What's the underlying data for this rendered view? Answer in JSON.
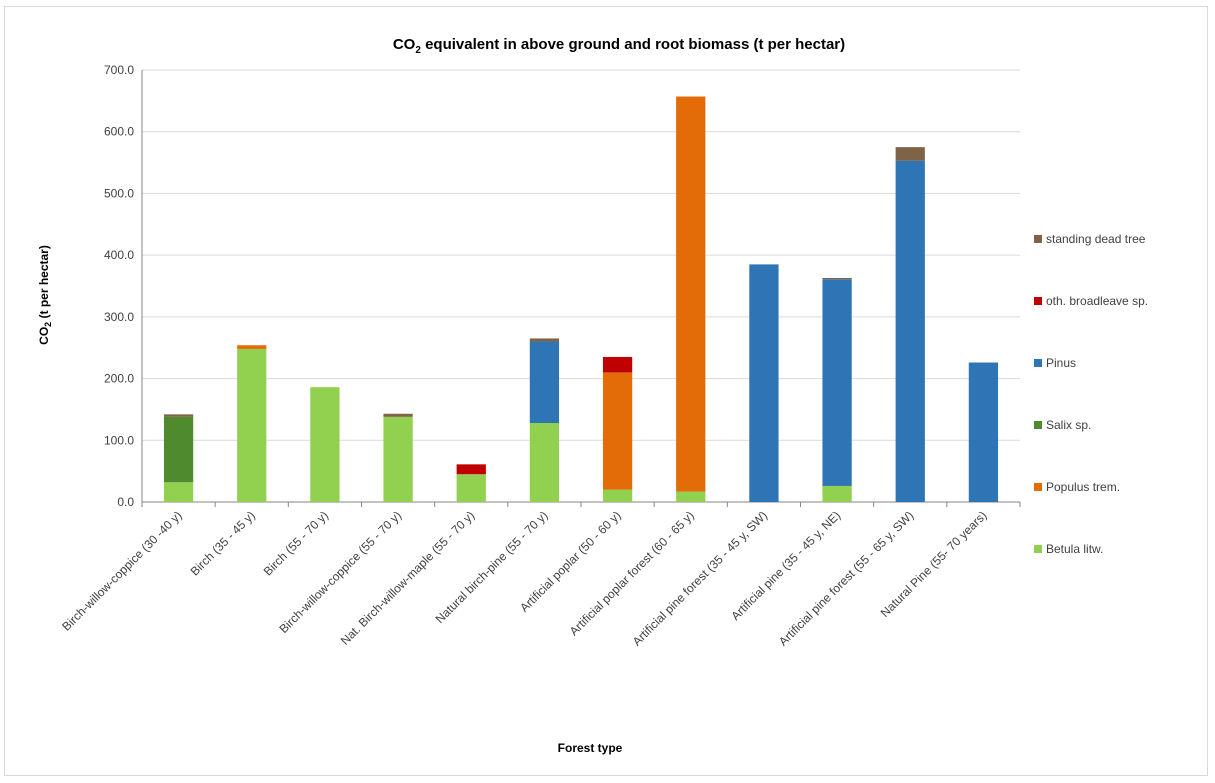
{
  "chart_data": {
    "type": "bar",
    "stacked": true,
    "title": "CO2  equivalent  in above  ground and root biomass (t per hectar)",
    "title_parts": {
      "pre": "CO",
      "sub": "2",
      "post": "  equivalent  in above  ground and root biomass (t per hectar)"
    },
    "xlabel": "Forest type",
    "ylabel": "CO2 (t per  hectar)",
    "ylabel_parts": {
      "pre": "CO",
      "sub": "2",
      "post": " (t per  hectar)"
    },
    "ylim": [
      0,
      700
    ],
    "yticks": [
      "0.0",
      "100.0",
      "200.0",
      "300.0",
      "400.0",
      "500.0",
      "600.0",
      "700.0"
    ],
    "grid": true,
    "legend_position": "right",
    "categories": [
      "Birch-willow-coppice (30 -40 y)",
      "Birch (35 - 45 y)",
      "Birch (55 - 70 y)",
      "Birch-willow-coppice (55 - 70 y)",
      "Nat. Birch-willow-maple (55 - 70 y)",
      "Natural birch-pine (55 - 70  y)",
      "Artificial poplar (50  - 60 y)",
      "Artificial poplar forest (60 - 65 y)",
      "Artificial pine forest  (35 - 45 y, SW)",
      "Artificial pine  (35 - 45 y, NE)",
      "Artificial pine forest (55 - 65 y, SW)",
      "Natural Pine (55- 70 years)"
    ],
    "series": [
      {
        "name": "Betula litw.",
        "color": "#92d050",
        "values": [
          32,
          248,
          186,
          138,
          45,
          128,
          20,
          17,
          0,
          26,
          0,
          0
        ]
      },
      {
        "name": "Populus trem.",
        "color": "#e36c09",
        "values": [
          0,
          6,
          0,
          0,
          0,
          0,
          190,
          640,
          0,
          0,
          0,
          0
        ]
      },
      {
        "name": "Salix sp.",
        "color": "#4f8a2e",
        "values": [
          106,
          0,
          0,
          0,
          0,
          0,
          0,
          0,
          0,
          0,
          0,
          0
        ]
      },
      {
        "name": "Pinus",
        "color": "#2e75b6",
        "values": [
          0,
          0,
          0,
          0,
          0,
          132,
          0,
          0,
          385,
          335,
          553,
          226
        ]
      },
      {
        "name": "oth. broadleave sp.",
        "color": "#c00000",
        "values": [
          0,
          0,
          0,
          0,
          16,
          0,
          25,
          0,
          0,
          0,
          0,
          0
        ]
      },
      {
        "name": "standing dead tree",
        "color": "#7f6346",
        "values": [
          4,
          0,
          0,
          5,
          0,
          5,
          0,
          0,
          0,
          2,
          22,
          0
        ]
      }
    ]
  }
}
